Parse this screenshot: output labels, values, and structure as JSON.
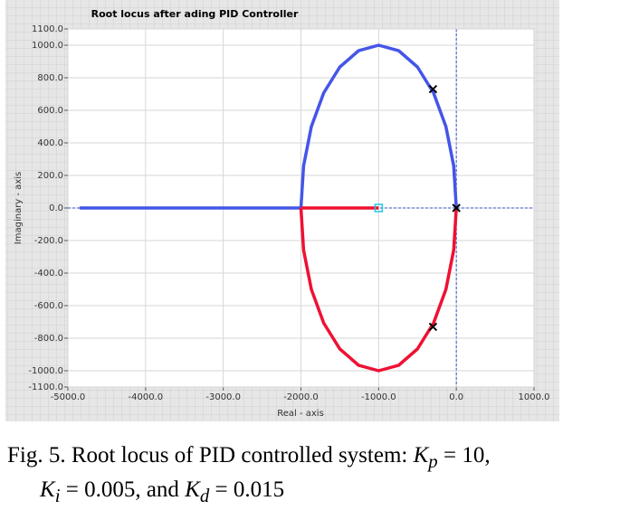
{
  "chart_data": {
    "type": "line",
    "title": "Root locus after ading PID Controller",
    "x_label": "Real - axis",
    "y_label": "Imaginary - axis",
    "xlim": [
      -5000,
      1000
    ],
    "xticks": [
      {
        "value": -5000,
        "label": "-5000.0"
      },
      {
        "value": -4000,
        "label": "-4000.0"
      },
      {
        "value": -3000,
        "label": "-3000.0"
      },
      {
        "value": -2000,
        "label": "-2000.0"
      },
      {
        "value": -1000,
        "label": "-1000.0"
      },
      {
        "value": 0,
        "label": "0.0"
      },
      {
        "value": 1000,
        "label": "1000.0"
      }
    ],
    "ylim": [
      -1100,
      1100
    ],
    "yticks": [
      {
        "value": 1100,
        "label": "1100.0"
      },
      {
        "value": 1000,
        "label": "1000.0"
      },
      {
        "value": 800,
        "label": "800.0"
      },
      {
        "value": 600,
        "label": "600.0"
      },
      {
        "value": 400,
        "label": "400.0"
      },
      {
        "value": 200,
        "label": "200.0"
      },
      {
        "value": 0,
        "label": "0.0"
      },
      {
        "value": -200,
        "label": "-200.0"
      },
      {
        "value": -400,
        "label": "-400.0"
      },
      {
        "value": -600,
        "label": "-600.0"
      },
      {
        "value": -800,
        "label": "-800.0"
      },
      {
        "value": -1000,
        "label": "-1000.0"
      },
      {
        "value": -1100,
        "label": "-1100.0"
      }
    ],
    "grid": true,
    "series": [
      {
        "color": "#4455e8",
        "x": [
          -4850,
          -2000
        ],
        "values": [
          0,
          0
        ]
      },
      {
        "color": "#4455e8",
        "x": [
          -2000,
          -1966,
          -1866,
          -1707,
          -1500,
          -1259,
          -1000,
          -741,
          -500,
          -293,
          -134,
          -34,
          0
        ],
        "values": [
          0,
          259,
          500,
          707,
          866,
          966,
          1000,
          966,
          866,
          707,
          500,
          259,
          0
        ]
      },
      {
        "color": "#ee1133",
        "x": [
          -2000,
          -1000
        ],
        "values": [
          0,
          0
        ]
      },
      {
        "color": "#ee1133",
        "x": [
          -2000,
          -1966,
          -1866,
          -1707,
          -1500,
          -1259,
          -1000,
          -741,
          -500,
          -293,
          -134,
          -34,
          0
        ],
        "values": [
          0,
          -259,
          -500,
          -707,
          -866,
          -966,
          -1000,
          -966,
          -866,
          -707,
          -500,
          -259,
          0
        ]
      }
    ],
    "poles": {
      "color": "#000000",
      "x": [
        -300,
        -300,
        0
      ],
      "values": [
        730,
        -730,
        0
      ]
    },
    "zeros": {
      "color": "#22c8e8",
      "x": [
        -1000
      ],
      "values": [
        0
      ]
    }
  },
  "caption": [
    "Fig. 5. Root locus of PID controlled system: ",
    "K",
    "p",
    " = 10,",
    "K",
    "i",
    " = 0.005, and ",
    "K",
    "d",
    " = 0.015"
  ]
}
